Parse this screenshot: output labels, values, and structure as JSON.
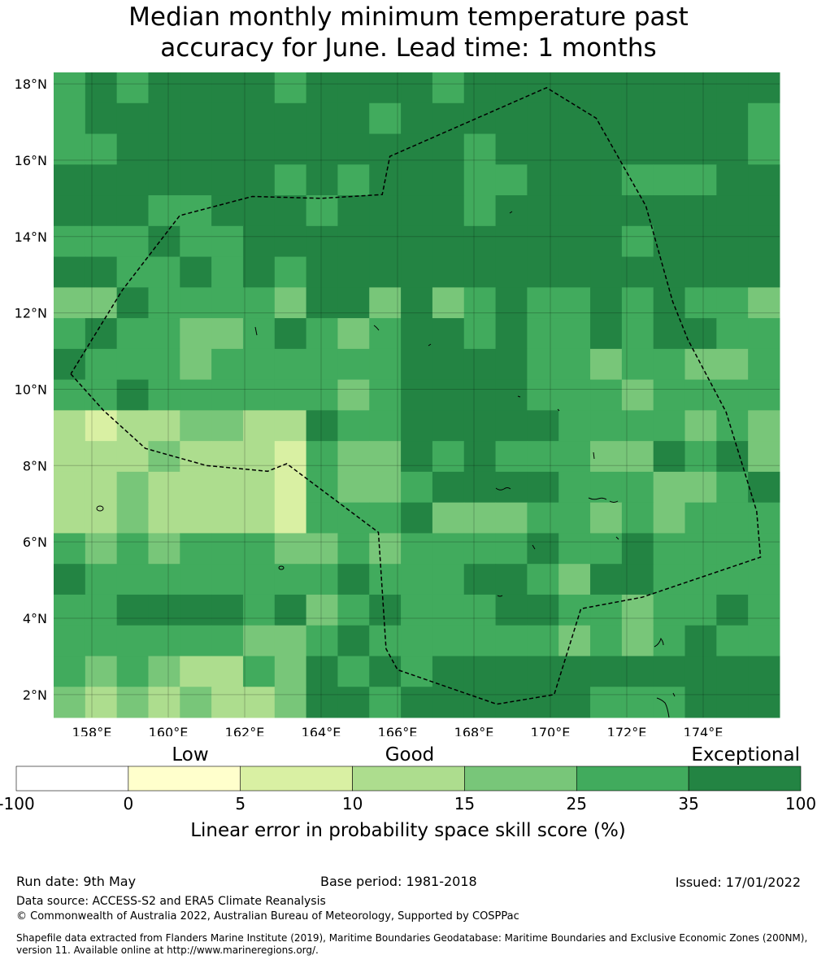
{
  "title_line1": "Median monthly minimum temperature past",
  "title_line2": "accuracy for June. Lead time: 1 months",
  "map": {
    "lon_range": [
      157.0,
      176.0
    ],
    "lat_range": [
      1.4,
      18.3
    ],
    "x_ticks": [
      158,
      160,
      162,
      164,
      166,
      168,
      170,
      172,
      174
    ],
    "x_tick_labels": [
      "158°E",
      "160°E",
      "162°E",
      "164°E",
      "166°E",
      "168°E",
      "170°E",
      "172°E",
      "174°E"
    ],
    "y_ticks": [
      2,
      4,
      6,
      8,
      10,
      12,
      14,
      16,
      18
    ],
    "y_tick_labels": [
      "2°N",
      "4°N",
      "6°N",
      "8°N",
      "10°N",
      "12°N",
      "14°N",
      "16°N",
      "18°N"
    ],
    "grid": true,
    "eez_boundary": [
      [
        157.45,
        10.4
      ],
      [
        158.3,
        9.45
      ],
      [
        159.4,
        8.45
      ],
      [
        161.0,
        8.0
      ],
      [
        162.6,
        7.85
      ],
      [
        163.1,
        8.05
      ],
      [
        165.5,
        6.25
      ],
      [
        165.7,
        3.2
      ],
      [
        166.0,
        2.65
      ],
      [
        168.6,
        1.75
      ],
      [
        170.1,
        2.0
      ],
      [
        170.8,
        4.25
      ],
      [
        172.4,
        4.55
      ],
      [
        175.5,
        5.6
      ],
      [
        175.4,
        6.8
      ],
      [
        174.6,
        9.4
      ],
      [
        173.6,
        11.3
      ],
      [
        173.2,
        12.3
      ],
      [
        172.5,
        14.8
      ],
      [
        171.2,
        17.1
      ],
      [
        169.9,
        17.9
      ],
      [
        165.8,
        16.1
      ],
      [
        165.6,
        15.1
      ],
      [
        164.0,
        15.0
      ],
      [
        162.2,
        15.05
      ],
      [
        160.3,
        14.55
      ],
      [
        158.8,
        12.6
      ],
      [
        157.45,
        10.4
      ]
    ]
  },
  "legend": {
    "category_labels": [
      "Low",
      "Good",
      "Exceptional"
    ],
    "bins": [
      {
        "range": "-100 to 0",
        "color": "#ffffff"
      },
      {
        "range": "0 to 5",
        "color": "#ffffcc"
      },
      {
        "range": "5 to 10",
        "color": "#d9f0a3"
      },
      {
        "range": "10 to 15",
        "color": "#addd8e"
      },
      {
        "range": "15 to 25",
        "color": "#78c679"
      },
      {
        "range": "25 to 35",
        "color": "#41ab5d"
      },
      {
        "range": "35 to 100",
        "color": "#238443"
      }
    ],
    "tick_labels": [
      "-100",
      "0",
      "5",
      "10",
      "15",
      "25",
      "35",
      "100"
    ],
    "label": "Linear error in probability space skill score (%)"
  },
  "footer": {
    "run_date": "Run date: 9th May",
    "base_period": "Base period: 1981-2018",
    "issued": "Issued: 17/01/2022",
    "data_source": "Data source: ACCESS-S2 and ERA5 Climate Reanalysis",
    "copyright": "© Commonwealth of Australia 2022, Australian Bureau of Meteorology, Supported by COSPPac",
    "shapefile": "Shapefile data extracted from Flanders Marine Institute (2019), Maritime Boundaries Geodatabase: Maritime Boundaries and Exclusive Economic Zones (200NM), version 11. Available online at http://www.marineregions.org/."
  }
}
